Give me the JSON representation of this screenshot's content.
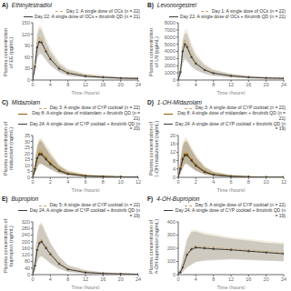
{
  "chart_data": [
    {
      "type": "line",
      "annotations": [
        "A)"
      ],
      "title": "Ethinylestradiol",
      "xlabel": "Time (hours)",
      "ylabel": "Plasma concentration\nof EE (pg/mL)",
      "xlim": [
        0,
        24
      ],
      "xticks": [
        0,
        4,
        8,
        12,
        16,
        20,
        24
      ],
      "ylim": [
        0,
        150
      ],
      "yticks": [
        0,
        30,
        60,
        90,
        120,
        150
      ],
      "grid": false,
      "legend": "upper right",
      "x": [
        0,
        0.5,
        1,
        1.5,
        2,
        3,
        4,
        6,
        8,
        12,
        16,
        20,
        24
      ],
      "series": [
        {
          "name": "Day 1: A single dose of OCs (n = 22)",
          "color": "#c8a96e",
          "line_style": "dashed",
          "marker": "circle",
          "values": [
            0,
            40,
            95,
            110,
            105,
            80,
            60,
            35,
            20,
            12,
            8,
            5,
            4
          ],
          "ci_low": [
            0,
            20,
            60,
            75,
            70,
            55,
            40,
            22,
            12,
            7,
            4,
            3,
            2
          ],
          "ci_high": [
            0,
            60,
            130,
            145,
            140,
            110,
            85,
            50,
            30,
            18,
            13,
            8,
            7
          ]
        },
        {
          "name": "Day 22: A single dose of OCs + ibrutinib QD (n = 21)",
          "color": "#3a3a3a",
          "line_style": "solid",
          "marker": "circle",
          "values": [
            0,
            35,
            85,
            100,
            98,
            75,
            55,
            30,
            18,
            10,
            7,
            5,
            4
          ],
          "ci_low": [
            0,
            18,
            55,
            68,
            67,
            52,
            38,
            20,
            11,
            6,
            4,
            3,
            2
          ],
          "ci_high": [
            0,
            55,
            118,
            135,
            132,
            100,
            75,
            43,
            27,
            15,
            11,
            8,
            7
          ]
        }
      ]
    },
    {
      "type": "line",
      "annotations": [
        "B)"
      ],
      "title": "Levonorgestrel",
      "xlabel": "Time (hours)",
      "ylabel": "Plasma concentration\nof LN (pg/mL)",
      "xlim": [
        0,
        24
      ],
      "xticks": [
        0,
        4,
        8,
        12,
        16,
        20,
        24
      ],
      "ylim": [
        0,
        8000
      ],
      "yticks": [
        0,
        1000,
        2000,
        3000,
        4000,
        5000,
        6000,
        7000,
        8000
      ],
      "grid": false,
      "legend": "upper right",
      "x": [
        0,
        0.5,
        1,
        1.5,
        2,
        3,
        4,
        6,
        8,
        12,
        16,
        20,
        24
      ],
      "series": [
        {
          "name": "Day 1: A single dose of OCs (n = 22)",
          "color": "#c8a96e",
          "line_style": "dashed",
          "marker": "circle",
          "values": [
            0,
            1200,
            4500,
            5500,
            5000,
            3500,
            2500,
            1500,
            1000,
            600,
            400,
            300,
            250
          ],
          "ci_low": [
            0,
            600,
            2500,
            3200,
            2800,
            2000,
            1500,
            900,
            600,
            380,
            250,
            180,
            150
          ],
          "ci_high": [
            0,
            2000,
            6000,
            7000,
            7200,
            5200,
            3800,
            2300,
            1500,
            900,
            600,
            450,
            380
          ]
        },
        {
          "name": "Day 22: A single dose of OCs + ibrutinib QD (n = 21)",
          "color": "#3a3a3a",
          "line_style": "solid",
          "marker": "circle",
          "values": [
            0,
            1100,
            4000,
            5000,
            4600,
            3200,
            2300,
            1400,
            950,
            580,
            380,
            280,
            230
          ],
          "ci_low": [
            0,
            550,
            2200,
            2900,
            2600,
            1850,
            1350,
            850,
            570,
            350,
            230,
            170,
            140
          ],
          "ci_high": [
            0,
            1800,
            5500,
            6500,
            6500,
            4700,
            3400,
            2100,
            1400,
            850,
            570,
            420,
            350
          ]
        }
      ]
    },
    {
      "type": "line",
      "annotations": [
        "C)"
      ],
      "title": "Midazolam",
      "xlabel": "Time (hours)",
      "ylabel": "Plasma concentration of\nmidazolam (ng/mL)",
      "xlim": [
        0,
        12
      ],
      "xticks": [
        0,
        2,
        4,
        6,
        8,
        10,
        12
      ],
      "ylim": [
        0,
        35
      ],
      "yticks": [
        0,
        5,
        10,
        15,
        20,
        25,
        30,
        35
      ],
      "grid": false,
      "legend": "upper right",
      "x": [
        0,
        0.25,
        0.5,
        0.75,
        1,
        1.5,
        2,
        3,
        4,
        6,
        8,
        10,
        12
      ],
      "series": [
        {
          "name": "Day 3: A single dose of CYP cocktail (n = 22)",
          "color": "#c8a96e",
          "line_style": "dashed",
          "marker": "circle",
          "values": [
            0,
            8,
            18,
            22,
            22,
            18,
            14,
            7,
            3.5,
            1.5,
            0.8,
            0.5,
            0.3
          ],
          "ci_low": [
            0,
            3,
            9,
            12,
            12,
            10,
            8,
            4,
            2,
            0.8,
            0.4,
            0.3,
            0.15
          ],
          "ci_high": [
            0,
            15,
            28,
            33,
            33,
            28,
            22,
            11,
            6,
            2.8,
            1.5,
            0.9,
            0.55
          ]
        },
        {
          "name": "Day 8: A single dose of midazolam + ibrutinib QD (n = 21)",
          "color": "#8b6000",
          "line_style": "solid",
          "marker": "circle",
          "values": [
            0,
            7,
            16,
            20,
            20,
            16,
            12,
            6,
            3,
            1.2,
            0.7,
            0.4,
            0.25
          ],
          "ci_low": [
            0,
            3,
            8,
            11,
            11,
            9,
            7,
            3.5,
            1.7,
            0.7,
            0.35,
            0.22,
            0.13
          ],
          "ci_high": [
            0,
            13,
            26,
            31,
            31,
            25,
            20,
            10,
            5.2,
            2.3,
            1.2,
            0.8,
            0.47
          ]
        },
        {
          "name": "Day 24: A single dose of CYP cocktail + ibrutinib QD (n = 20)",
          "color": "#3a3a3a",
          "line_style": "solid",
          "marker": "circle",
          "values": [
            0,
            7,
            16,
            19,
            19,
            15,
            11,
            5.5,
            2.8,
            1.1,
            0.65,
            0.4,
            0.22
          ],
          "ci_low": [
            0,
            3,
            8,
            11,
            11,
            9,
            6.5,
            3.2,
            1.6,
            0.65,
            0.32,
            0.22,
            0.12
          ],
          "ci_high": [
            0,
            13,
            25,
            30,
            30,
            24,
            18,
            9.5,
            5,
            2.1,
            1.1,
            0.75,
            0.43
          ]
        }
      ]
    },
    {
      "type": "line",
      "annotations": [
        "D)"
      ],
      "title": "1-OH-Midazolam",
      "xlabel": "Time (hours)",
      "ylabel": "Plasma concentration of\n1-OH-midazolam (ng/mL)",
      "xlim": [
        0,
        12
      ],
      "xticks": [
        0,
        2,
        4,
        6,
        8,
        10,
        12
      ],
      "ylim": [
        0,
        20
      ],
      "yticks": [
        0,
        4,
        8,
        12,
        16,
        20
      ],
      "grid": false,
      "legend": "upper right",
      "x": [
        0,
        0.25,
        0.5,
        0.75,
        1,
        1.5,
        2,
        3,
        4,
        6,
        8,
        10,
        12
      ],
      "series": [
        {
          "name": "Day 3: A single dose of CYP cocktail (n = 22)",
          "color": "#c8a96e",
          "line_style": "dashed",
          "marker": "circle",
          "values": [
            0,
            5,
            10,
            12,
            12,
            9,
            6.5,
            3,
            1.5,
            0.6,
            0.3,
            0.15,
            0.1
          ],
          "ci_low": [
            0,
            2,
            5,
            7,
            7,
            5,
            3.5,
            1.5,
            0.8,
            0.3,
            0.15,
            0.08,
            0.05
          ],
          "ci_high": [
            0,
            9,
            17,
            19,
            19,
            15,
            11,
            5.5,
            3,
            1.2,
            0.6,
            0.3,
            0.2
          ]
        },
        {
          "name": "Day 8: A single dose of midazolam + ibrutinib QD (n = 21)",
          "color": "#8b6000",
          "line_style": "solid",
          "marker": "circle",
          "values": [
            0,
            4.5,
            9,
            11,
            11,
            8.5,
            6,
            2.8,
            1.3,
            0.5,
            0.25,
            0.12,
            0.08
          ],
          "ci_low": [
            0,
            1.8,
            4.5,
            6.5,
            6.5,
            4.8,
            3.2,
            1.4,
            0.7,
            0.25,
            0.12,
            0.06,
            0.04
          ],
          "ci_high": [
            0,
            8.5,
            15.5,
            17.5,
            17.5,
            13.5,
            10,
            5,
            2.7,
            1.1,
            0.55,
            0.28,
            0.18
          ]
        },
        {
          "name": "Day 24: A single dose of CYP cocktail + ibrutinib QD (n = 19)",
          "color": "#3a3a3a",
          "line_style": "solid",
          "marker": "circle",
          "values": [
            0,
            4,
            8.5,
            10.5,
            10.5,
            8,
            5.5,
            2.5,
            1.2,
            0.45,
            0.22,
            0.11,
            0.07
          ],
          "ci_low": [
            0,
            1.6,
            4.2,
            6.2,
            6.2,
            4.5,
            3,
            1.3,
            0.65,
            0.22,
            0.11,
            0.06,
            0.03
          ],
          "ci_high": [
            0,
            8,
            14.5,
            17,
            17,
            13,
            9.5,
            4.7,
            2.5,
            1.0,
            0.5,
            0.26,
            0.17
          ]
        }
      ]
    },
    {
      "type": "line",
      "annotations": [
        "E)"
      ],
      "title": "Bupropion",
      "xlabel": "Time (hours)",
      "ylabel": "Plasma concentration of\nbupropion (ng/mL)",
      "xlim": [
        0,
        24
      ],
      "xticks": [
        0,
        4,
        8,
        12,
        16,
        20,
        24
      ],
      "ylim": [
        0,
        320
      ],
      "yticks": [
        0,
        40,
        80,
        120,
        160,
        200,
        240,
        280,
        320
      ],
      "grid": false,
      "legend": "upper right",
      "x": [
        0,
        0.5,
        1,
        1.5,
        2,
        3,
        4,
        6,
        8,
        12,
        16,
        20,
        24
      ],
      "series": [
        {
          "name": "Day 5: A single dose of CYP cocktail (n = 22)",
          "color": "#c8a96e",
          "line_style": "dashed",
          "marker": "circle",
          "values": [
            0,
            60,
            160,
            200,
            210,
            170,
            130,
            70,
            35,
            15,
            8,
            5,
            3
          ],
          "ci_low": [
            0,
            25,
            80,
            110,
            115,
            95,
            72,
            38,
            18,
            7,
            4,
            2.5,
            1.5
          ],
          "ci_high": [
            0,
            120,
            250,
            310,
            320,
            260,
            200,
            115,
            60,
            28,
            15,
            10,
            6
          ]
        },
        {
          "name": "Day 24: A single dose of CYP cocktail + ibrutinib QD (n = 19)",
          "color": "#3a3a3a",
          "line_style": "solid",
          "marker": "circle",
          "values": [
            0,
            55,
            150,
            190,
            200,
            162,
            124,
            65,
            32,
            13,
            7,
            4.5,
            2.8
          ],
          "ci_low": [
            0,
            22,
            75,
            104,
            110,
            90,
            68,
            35,
            16,
            6,
            3.5,
            2.2,
            1.4
          ],
          "ci_high": [
            0,
            110,
            238,
            298,
            308,
            248,
            190,
            108,
            56,
            26,
            14,
            9,
            5.5
          ]
        }
      ]
    },
    {
      "type": "line",
      "annotations": [
        "F)"
      ],
      "title": "4-OH-Bupropion",
      "xlabel": "Time (hours)",
      "ylabel": "Plasma concentration of\n4-OH-bupropion (ng/mL)",
      "xlim": [
        0,
        24
      ],
      "xticks": [
        0,
        4,
        8,
        12,
        16,
        20,
        24
      ],
      "ylim": [
        0,
        400
      ],
      "yticks": [
        0,
        100,
        200,
        300,
        400
      ],
      "grid": false,
      "legend": "upper right",
      "x": [
        0,
        0.5,
        1,
        2,
        3,
        4,
        6,
        8,
        12,
        16,
        20,
        24
      ],
      "series": [
        {
          "name": "Day 5: A single dose of CYP cocktail (n = 22)",
          "color": "#c8a96e",
          "line_style": "dashed",
          "marker": "circle",
          "values": [
            10,
            20,
            60,
            160,
            200,
            215,
            210,
            205,
            195,
            185,
            175,
            165
          ],
          "ci_low": [
            5,
            8,
            20,
            60,
            80,
            100,
            110,
            115,
            120,
            115,
            110,
            105
          ],
          "ci_high": [
            20,
            45,
            130,
            280,
            340,
            340,
            320,
            310,
            285,
            270,
            255,
            245
          ]
        },
        {
          "name": "Day 24: A single dose of CYP cocktail + ibrutinib QD (n = 19)",
          "color": "#3a3a3a",
          "line_style": "solid",
          "marker": "circle",
          "values": [
            10,
            18,
            55,
            150,
            192,
            205,
            200,
            195,
            188,
            178,
            168,
            158
          ],
          "ci_low": [
            5,
            7,
            18,
            55,
            75,
            95,
            105,
            108,
            115,
            110,
            105,
            100
          ],
          "ci_high": [
            20,
            42,
            120,
            265,
            325,
            328,
            305,
            295,
            272,
            258,
            242,
            232
          ]
        }
      ]
    }
  ]
}
